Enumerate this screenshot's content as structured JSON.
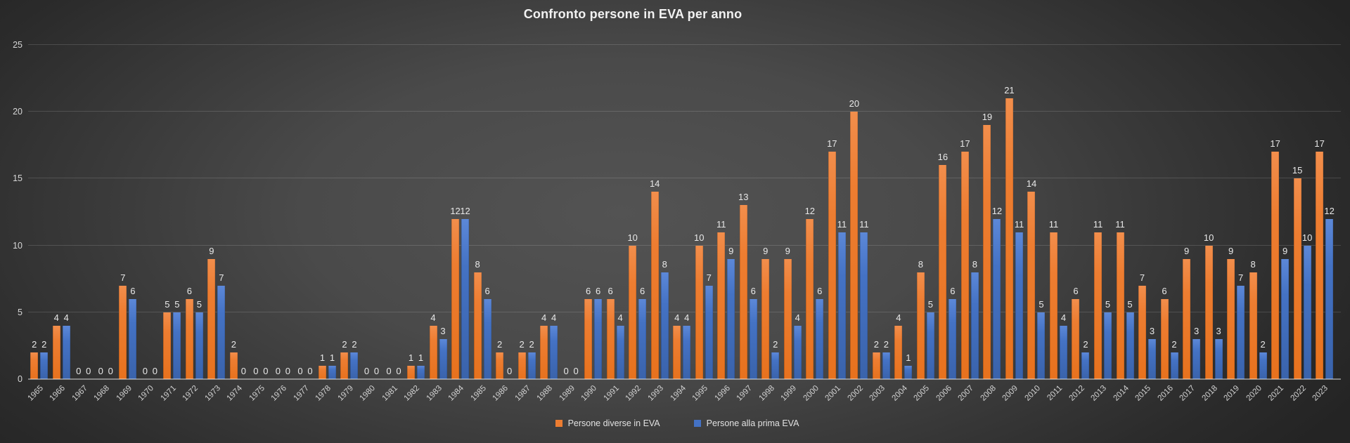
{
  "title": "Confronto persone in EVA per anno",
  "legend": {
    "series1_label": "Persone diverse in EVA",
    "series2_label": "Persone alla prima EVA"
  },
  "colors": {
    "series1": "#ED7D31",
    "series2": "#4472C4",
    "background_center": "#505050",
    "background_edge": "#242424",
    "text": "#E8E8E8",
    "gridline": "rgba(255,255,255,0.14)"
  },
  "chart_data": {
    "type": "bar",
    "title": "Confronto persone in EVA per anno",
    "xlabel": "",
    "ylabel": "",
    "ylim": [
      0,
      25
    ],
    "yticks": [
      0,
      5,
      10,
      15,
      20,
      25
    ],
    "grid": true,
    "data_labels": true,
    "legend_position": "bottom",
    "categories": [
      "1965",
      "1966",
      "1967",
      "1968",
      "1969",
      "1970",
      "1971",
      "1972",
      "1973",
      "1974",
      "1975",
      "1976",
      "1977",
      "1978",
      "1979",
      "1980",
      "1981",
      "1982",
      "1983",
      "1984",
      "1985",
      "1986",
      "1987",
      "1988",
      "1989",
      "1990",
      "1991",
      "1992",
      "1993",
      "1994",
      "1995",
      "1996",
      "1997",
      "1998",
      "1999",
      "2000",
      "2001",
      "2002",
      "2003",
      "2004",
      "2005",
      "2006",
      "2007",
      "2008",
      "2009",
      "2010",
      "2011",
      "2012",
      "2013",
      "2014",
      "2015",
      "2016",
      "2017",
      "2018",
      "2019",
      "2020",
      "2021",
      "2022",
      "2023"
    ],
    "series": [
      {
        "name": "Persone diverse in EVA",
        "color": "#ED7D31",
        "values": [
          2,
          4,
          0,
          0,
          7,
          0,
          5,
          6,
          9,
          2,
          0,
          0,
          0,
          1,
          2,
          0,
          0,
          1,
          4,
          12,
          8,
          2,
          2,
          4,
          0,
          6,
          6,
          10,
          14,
          4,
          10,
          11,
          13,
          9,
          9,
          12,
          17,
          20,
          2,
          4,
          8,
          16,
          17,
          19,
          21,
          14,
          11,
          6,
          11,
          11,
          7,
          6,
          9,
          10,
          9,
          8,
          17,
          15,
          17
        ]
      },
      {
        "name": "Persone alla prima EVA",
        "color": "#4472C4",
        "values": [
          2,
          4,
          0,
          0,
          6,
          0,
          5,
          5,
          7,
          0,
          0,
          0,
          0,
          1,
          2,
          0,
          0,
          1,
          3,
          12,
          6,
          0,
          2,
          4,
          0,
          6,
          4,
          6,
          8,
          4,
          7,
          9,
          6,
          2,
          4,
          6,
          11,
          11,
          2,
          1,
          5,
          6,
          8,
          12,
          11,
          5,
          4,
          2,
          5,
          5,
          3,
          2,
          3,
          3,
          7,
          2,
          9,
          10,
          12
        ]
      }
    ]
  }
}
